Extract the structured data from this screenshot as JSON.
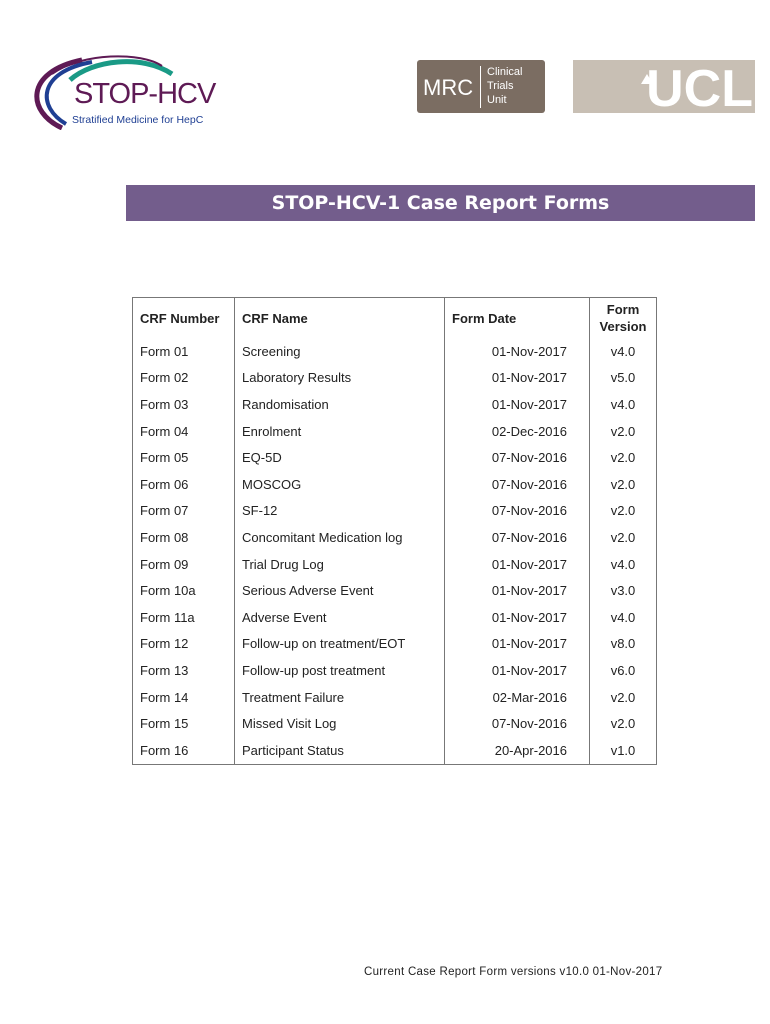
{
  "logos": {
    "stop_hcv": {
      "title": "STOP-HCV",
      "subtitle": "Stratified Medicine for HepC"
    },
    "mrc": {
      "left": "MRC",
      "right": [
        "Clinical",
        "Trials",
        "Unit"
      ]
    },
    "ucl": "UCL"
  },
  "title": "STOP-HCV-1 Case Report Forms",
  "table": {
    "headers": [
      "CRF Number",
      "CRF Name",
      "Form Date",
      "Form Version"
    ],
    "rows": [
      [
        "Form 01",
        "Screening",
        "01-Nov-2017",
        "v4.0"
      ],
      [
        "Form 02",
        "Laboratory Results",
        "01-Nov-2017",
        "v5.0"
      ],
      [
        "Form 03",
        "Randomisation",
        "01-Nov-2017",
        "v4.0"
      ],
      [
        "Form 04",
        "Enrolment",
        "02-Dec-2016",
        "v2.0"
      ],
      [
        "Form 05",
        "EQ-5D",
        "07-Nov-2016",
        "v2.0"
      ],
      [
        "Form 06",
        "MOSCOG",
        "07-Nov-2016",
        "v2.0"
      ],
      [
        "Form 07",
        "SF-12",
        "07-Nov-2016",
        "v2.0"
      ],
      [
        "Form 08",
        "Concomitant Medication log",
        "07-Nov-2016",
        "v2.0"
      ],
      [
        "Form 09",
        "Trial Drug Log",
        "01-Nov-2017",
        "v4.0"
      ],
      [
        "Form 10a",
        "Serious Adverse Event",
        "01-Nov-2017",
        "v3.0"
      ],
      [
        "Form 11a",
        "Adverse Event",
        "01-Nov-2017",
        "v4.0"
      ],
      [
        "Form 12",
        "Follow-up on treatment/EOT",
        "01-Nov-2017",
        "v8.0"
      ],
      [
        "Form 13",
        "Follow-up post treatment",
        "01-Nov-2017",
        "v6.0"
      ],
      [
        "Form 14",
        "Treatment Failure",
        "02-Mar-2016",
        "v2.0"
      ],
      [
        "Form 15",
        "Missed Visit Log",
        "07-Nov-2016",
        "v2.0"
      ],
      [
        "Form 16",
        "Participant Status",
        "20-Apr-2016",
        "v1.0"
      ]
    ]
  },
  "footer": "Current Case Report Form versions v10.0 01-Nov-2017",
  "colors": {
    "banner": "#735d8c",
    "purple": "#5e1a55",
    "blue": "#1f3f93",
    "teal": "#1a9a86",
    "mrc": "#7b6d62",
    "ucl": "#c8bfb4"
  }
}
